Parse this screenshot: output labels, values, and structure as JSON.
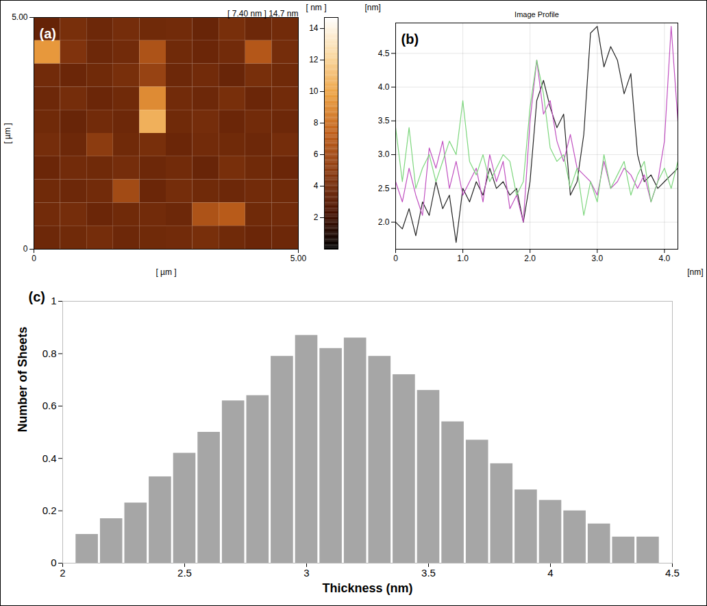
{
  "chart_data": [
    {
      "type": "heatmap",
      "annotations": [
        "(a)",
        "[ 7.40 nm ] 14.7 nm"
      ],
      "xlabel": "[ µm ]",
      "ylabel": "[ µm ]",
      "xlim": [
        0,
        5
      ],
      "xticks": [
        0,
        {
          "value": 5,
          "label": "5.00"
        }
      ],
      "ylim": [
        0,
        5
      ],
      "yticks": [
        0,
        {
          "value": 5,
          "label": "5.00"
        }
      ],
      "cells": [
        [
          3.5,
          4.2,
          3.8,
          4.1,
          3.9,
          4.0,
          3.6,
          4.2,
          3.8,
          4.0
        ],
        [
          9.5,
          4.5,
          3.8,
          4.0,
          6.5,
          3.9,
          3.7,
          4.0,
          6.8,
          4.1
        ],
        [
          4.0,
          3.7,
          3.9,
          4.2,
          5.5,
          3.8,
          4.0,
          3.6,
          4.2,
          3.9
        ],
        [
          3.8,
          4.1,
          3.7,
          3.9,
          9.0,
          4.0,
          3.8,
          4.2,
          3.7,
          4.0
        ],
        [
          3.9,
          3.6,
          4.0,
          3.8,
          10.5,
          3.9,
          4.1,
          3.7,
          4.0,
          3.8
        ],
        [
          4.1,
          3.8,
          5.0,
          3.9,
          4.2,
          3.7,
          4.0,
          3.9,
          3.8,
          4.1
        ],
        [
          3.7,
          4.0,
          3.9,
          4.1,
          3.8,
          4.0,
          3.6,
          4.2,
          3.9,
          3.7
        ],
        [
          3.9,
          3.8,
          4.0,
          6.0,
          3.7,
          4.1,
          3.9,
          3.8,
          4.0,
          3.9
        ],
        [
          4.0,
          4.1,
          3.7,
          3.9,
          4.0,
          3.8,
          6.5,
          7.0,
          3.9,
          4.0
        ],
        [
          3.8,
          3.9,
          4.1,
          3.8,
          3.9,
          4.0,
          4.2,
          3.9,
          3.7,
          3.8
        ]
      ],
      "colorbar": {
        "label": "[ nm ]",
        "range": [
          0,
          14.7
        ],
        "ticks": [
          2,
          4,
          6,
          8,
          10,
          12,
          14
        ]
      }
    },
    {
      "type": "line",
      "title": "Image Profile",
      "annotations": [
        "(b)"
      ],
      "xlabel": "[nm]",
      "ylabel": "[nm]",
      "x": [
        0,
        0.1,
        0.2,
        0.3,
        0.4,
        0.5,
        0.6,
        0.7,
        0.8,
        0.9,
        1.0,
        1.1,
        1.2,
        1.3,
        1.4,
        1.5,
        1.6,
        1.7,
        1.8,
        1.9,
        2.0,
        2.1,
        2.2,
        2.3,
        2.4,
        2.5,
        2.6,
        2.7,
        2.8,
        2.9,
        3.0,
        3.1,
        3.2,
        3.3,
        3.4,
        3.5,
        3.6,
        3.7,
        3.8,
        3.9,
        4.0,
        4.1,
        4.2
      ],
      "series": [
        {
          "color": "#222222",
          "values": [
            2.0,
            1.9,
            2.2,
            1.8,
            2.3,
            2.1,
            2.6,
            2.2,
            2.4,
            1.7,
            2.5,
            2.3,
            2.6,
            2.4,
            2.8,
            2.5,
            2.6,
            2.4,
            2.5,
            2.0,
            2.6,
            3.8,
            4.1,
            3.7,
            3.4,
            3.6,
            2.4,
            2.6,
            3.3,
            4.8,
            4.9,
            4.3,
            4.6,
            4.4,
            3.9,
            4.2,
            3.0,
            2.6,
            2.7,
            2.5,
            2.6,
            2.7,
            2.8
          ]
        },
        {
          "color": "#c050c0",
          "values": [
            2.6,
            2.3,
            2.8,
            2.4,
            2.1,
            3.1,
            2.8,
            3.2,
            2.5,
            2.9,
            2.4,
            2.6,
            2.8,
            2.3,
            3.0,
            2.6,
            2.9,
            2.2,
            2.4,
            2.0,
            3.5,
            4.4,
            3.6,
            3.8,
            3.2,
            2.9,
            3.3,
            2.8,
            2.7,
            2.6,
            2.4,
            2.9,
            2.5,
            2.6,
            2.8,
            2.7,
            2.5,
            2.7,
            2.3,
            2.6,
            3.2,
            4.9,
            3.5
          ]
        },
        {
          "color": "#7cd67c",
          "values": [
            3.4,
            2.6,
            3.4,
            2.5,
            2.8,
            3.0,
            2.6,
            2.9,
            3.2,
            3.0,
            3.8,
            2.9,
            2.7,
            3.0,
            2.6,
            2.8,
            3.0,
            2.9,
            2.4,
            2.6,
            3.7,
            4.4,
            3.9,
            3.1,
            2.9,
            3.0,
            2.5,
            2.8,
            2.1,
            2.6,
            2.3,
            3.0,
            2.5,
            2.7,
            2.9,
            2.4,
            2.7,
            2.9,
            2.3,
            2.6,
            2.8,
            2.5,
            2.9
          ]
        }
      ],
      "xlim": [
        0,
        4.2
      ],
      "xticks": [
        0,
        {
          "value": 1,
          "label": "1.0"
        },
        {
          "value": 2,
          "label": "2.0"
        },
        {
          "value": 3,
          "label": "3.0"
        },
        {
          "value": 4,
          "label": "4.0"
        }
      ],
      "ylim": [
        1.6,
        4.95
      ],
      "yticks": [
        {
          "value": 2,
          "label": "2.0"
        },
        2.5,
        {
          "value": 3,
          "label": "3.0"
        },
        3.5,
        {
          "value": 4,
          "label": "4.0"
        },
        4.5
      ],
      "grid": true
    },
    {
      "type": "histogram",
      "annotations": [
        "(c)"
      ],
      "xlabel": "Thickness (nm)",
      "ylabel": "Number of Sheets",
      "bins": [
        2.05,
        2.15,
        2.25,
        2.35,
        2.45,
        2.55,
        2.65,
        2.75,
        2.85,
        2.95,
        3.05,
        3.15,
        3.25,
        3.35,
        3.45,
        3.55,
        3.65,
        3.75,
        3.85,
        3.95,
        4.05,
        4.15,
        4.25,
        4.35,
        4.45
      ],
      "counts": [
        0.11,
        0.17,
        0.23,
        0.33,
        0.42,
        0.5,
        0.62,
        0.64,
        0.79,
        0.87,
        0.82,
        0.86,
        0.79,
        0.72,
        0.66,
        0.54,
        0.47,
        0.38,
        0.28,
        0.24,
        0.2,
        0.15,
        0.1,
        0.1
      ],
      "color": "#a6a6a6",
      "xlim": [
        2,
        4.5
      ],
      "xticks": [
        2,
        2.5,
        3,
        3.5,
        4,
        4.5
      ],
      "ylim": [
        0,
        1
      ],
      "yticks": [
        0,
        0.2,
        0.4,
        0.6,
        0.8,
        1
      ]
    }
  ]
}
